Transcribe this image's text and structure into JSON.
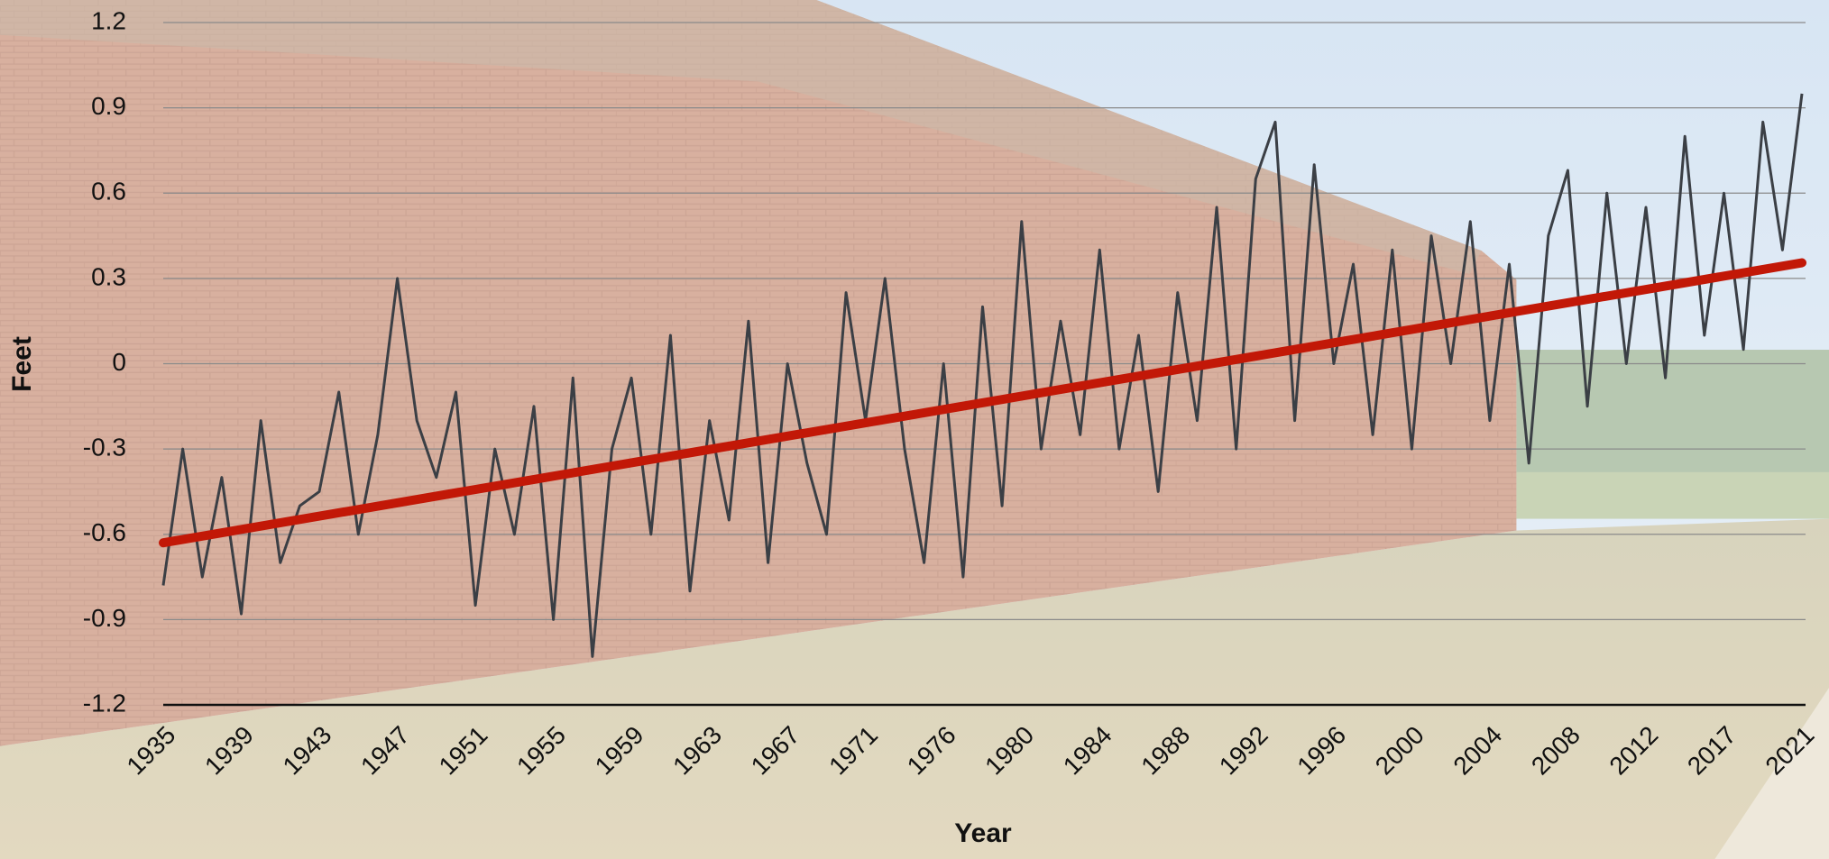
{
  "chart_data": {
    "type": "line",
    "x_label": "Year",
    "y_label": "Feet",
    "categories": [
      "1935",
      null,
      null,
      null,
      "1939",
      null,
      null,
      null,
      "1943",
      null,
      null,
      null,
      "1947",
      null,
      null,
      null,
      "1951",
      null,
      null,
      null,
      "1955",
      null,
      null,
      null,
      "1959",
      null,
      null,
      null,
      "1963",
      null,
      null,
      null,
      "1967",
      null,
      null,
      null,
      "1971",
      null,
      null,
      null,
      "1976",
      null,
      null,
      null,
      "1980",
      null,
      null,
      null,
      "1984",
      null,
      null,
      null,
      "1988",
      null,
      null,
      null,
      "1992",
      null,
      null,
      null,
      "1996",
      null,
      null,
      null,
      "2000",
      null,
      null,
      null,
      "2004",
      null,
      null,
      null,
      "2008",
      null,
      null,
      null,
      "2012",
      null,
      null,
      null,
      "2017",
      null,
      null,
      null,
      "2021"
    ],
    "series": [
      {
        "color": "#3b3f45",
        "values": [
          -0.78,
          -0.3,
          -0.75,
          -0.4,
          -0.88,
          -0.2,
          -0.7,
          -0.5,
          -0.45,
          -0.1,
          -0.6,
          -0.25,
          0.3,
          -0.2,
          -0.4,
          -0.1,
          -0.85,
          -0.3,
          -0.6,
          -0.15,
          -0.9,
          -0.05,
          -1.03,
          -0.3,
          -0.05,
          -0.6,
          0.1,
          -0.8,
          -0.2,
          -0.55,
          0.15,
          -0.7,
          0.0,
          -0.35,
          -0.6,
          0.25,
          -0.2,
          0.3,
          -0.3,
          -0.7,
          0.0,
          -0.75,
          0.2,
          -0.5,
          0.5,
          -0.3,
          0.15,
          -0.25,
          0.4,
          -0.3,
          0.1,
          -0.45,
          0.25,
          -0.2,
          0.55,
          -0.3,
          0.65,
          0.85,
          -0.2,
          0.7,
          0.0,
          0.35,
          -0.25,
          0.4,
          -0.3,
          0.45,
          0.0,
          0.5,
          -0.2,
          0.35,
          -0.35,
          0.45,
          0.68,
          -0.15,
          0.6,
          0.0,
          0.55,
          -0.05,
          0.8,
          0.1,
          0.6,
          0.05,
          0.85,
          0.4,
          0.95
        ]
      }
    ],
    "trendline": {
      "color": "#c21807",
      "values": [
        -0.63,
        0.355
      ]
    },
    "ylim": [
      -1.2,
      1.2
    ],
    "yticks": [
      -1.2,
      -0.9,
      -0.6,
      -0.3,
      0,
      0.3,
      0.6,
      0.9,
      1.2
    ],
    "grid": true
  }
}
